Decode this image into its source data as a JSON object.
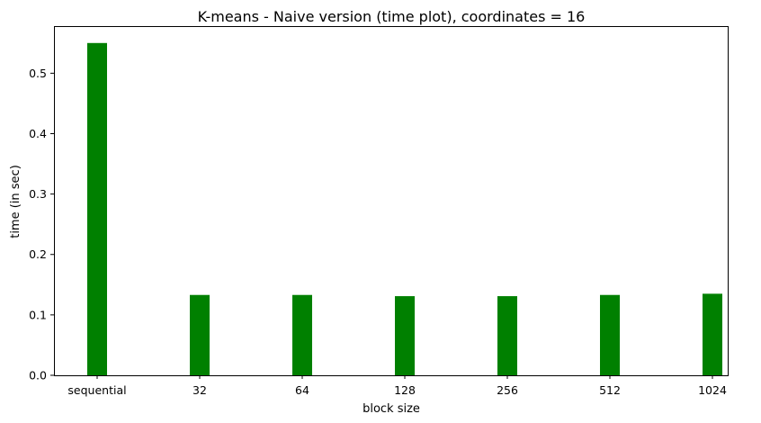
{
  "chart_data": {
    "type": "bar",
    "title": "K-means - Naive version (time plot), coordinates = 16",
    "xlabel": "block size",
    "ylabel": "time (in sec)",
    "categories": [
      "sequential",
      "32",
      "64",
      "128",
      "256",
      "512",
      "1024"
    ],
    "values": [
      0.55,
      0.133,
      0.133,
      0.131,
      0.131,
      0.133,
      0.135
    ],
    "ylim": [
      0,
      0.578
    ],
    "yticks": [
      "0.0",
      "0.1",
      "0.2",
      "0.3",
      "0.4",
      "0.5"
    ],
    "bar_color": "#008000",
    "grid": false,
    "legend": "none"
  }
}
